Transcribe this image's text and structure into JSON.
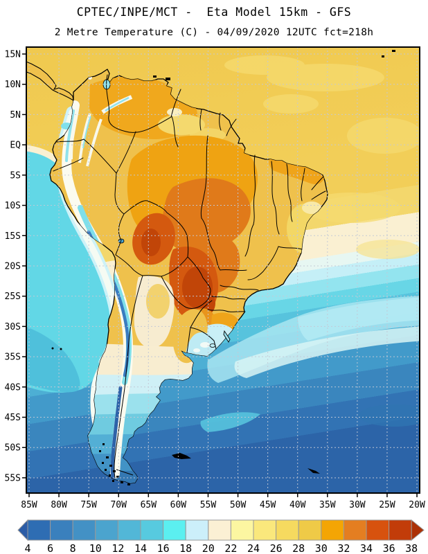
{
  "header": {
    "title_line1": "CPTEC/INPE/MCT -  Eta Model 15km - GFS",
    "title_line2": "2 Metre Temperature (C) - 04/09/2020 12UTC fct=218h"
  },
  "axes": {
    "lat_labels": [
      "15N",
      "10N",
      "5N",
      "EQ",
      "5S",
      "10S",
      "15S",
      "20S",
      "25S",
      "30S",
      "35S",
      "40S",
      "45S",
      "50S",
      "55S"
    ],
    "lon_labels": [
      "85W",
      "80W",
      "75W",
      "70W",
      "65W",
      "60W",
      "55W",
      "50W",
      "45W",
      "40W",
      "35W",
      "30W",
      "25W",
      "20W"
    ]
  },
  "colorbar": {
    "unit": "C",
    "tick_labels": [
      "4",
      "6",
      "8",
      "10",
      "12",
      "14",
      "16",
      "18",
      "20",
      "22",
      "24",
      "26",
      "28",
      "30",
      "32",
      "34",
      "36",
      "38"
    ],
    "segment_colors": [
      "#2E6DB3",
      "#3A80BD",
      "#4391C5",
      "#4BA4CE",
      "#52B7D7",
      "#57CADF",
      "#5BEFF0",
      "#CCEFFA",
      "#FBF0D4",
      "#FCF6A1",
      "#FAE87C",
      "#F6DA5F",
      "#EFCA47",
      "#F4A504",
      "#E47E21",
      "#D7520E",
      "#C23C09"
    ],
    "left_arrow_color": "#2B5CA6",
    "right_arrow_color": "#AC3106"
  },
  "grid": {
    "line_color": "#C3C9D6"
  }
}
